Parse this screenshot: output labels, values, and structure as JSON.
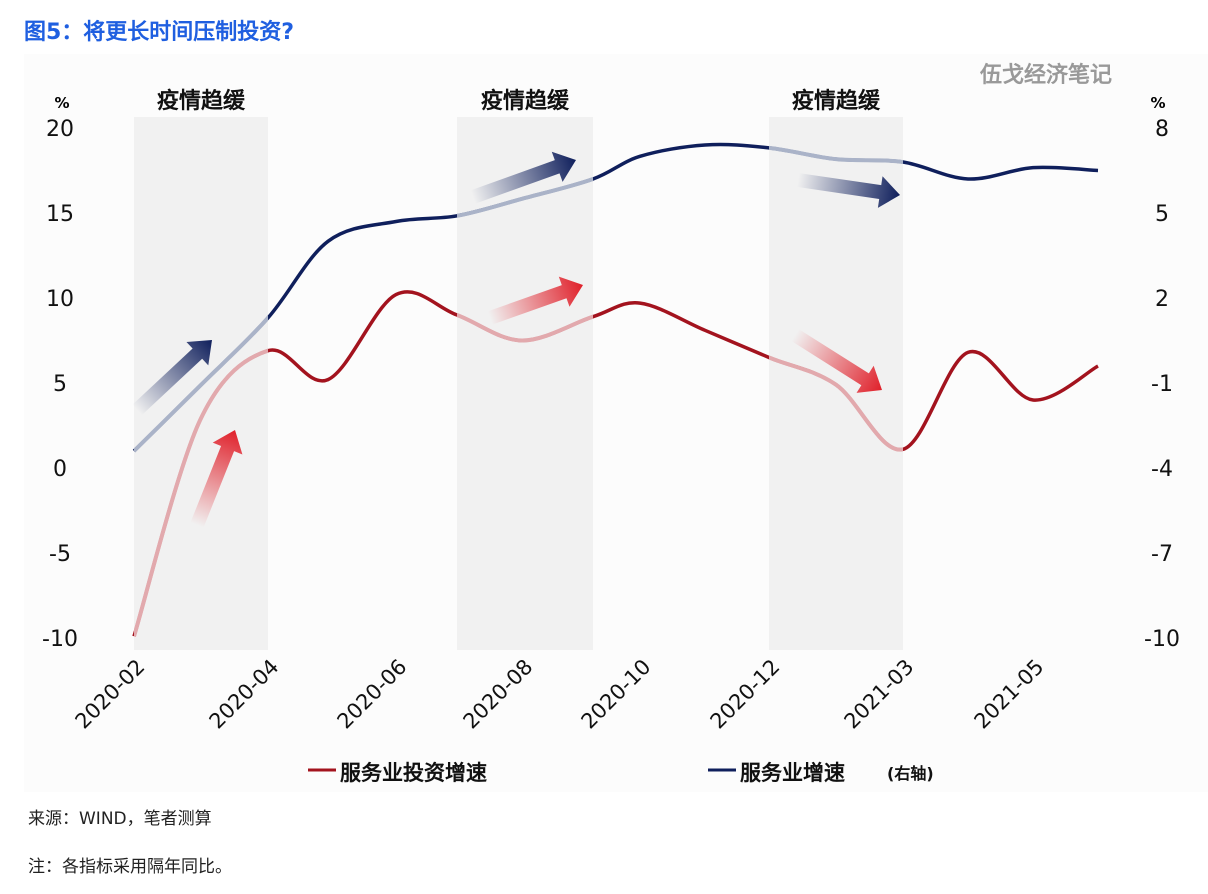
{
  "title": "图5：将更长时间压制投资?",
  "watermark": "伍戈经济笔记",
  "source": "来源：WIND，笔者测算",
  "note": "注：各指标采用隔年同比。",
  "chart_data": {
    "type": "line",
    "x": [
      "2020-02",
      "2020-03",
      "2020-04",
      "2020-05",
      "2020-06",
      "2020-07",
      "2020-08",
      "2020-09",
      "2020-10",
      "2020-11",
      "2020-12",
      "2021-02",
      "2021-03",
      "2021-04",
      "2021-05",
      "2021-06"
    ],
    "x_tick_labels": [
      "2020-02",
      "2020-04",
      "2020-06",
      "2020-08",
      "2020-10",
      "2020-12",
      "2021-03",
      "2021-05"
    ],
    "series": [
      {
        "name": "服务业投资增速",
        "axis": "left",
        "color": "#a3131e",
        "light_color": "#e2a9ad",
        "values": [
          -9.9,
          2.8,
          6.9,
          5.2,
          10.2,
          9.0,
          7.5,
          8.9,
          9.7,
          8.1,
          6.5,
          4.9,
          1.1,
          6.8,
          4.0,
          6.0
        ]
      },
      {
        "name": "服务业增速",
        "legend_suffix": "(右轴)",
        "axis": "right",
        "color": "#0f1f5c",
        "light_color": "#aab3c8",
        "values": [
          -3.4,
          -1.1,
          1.3,
          4.0,
          4.7,
          4.9,
          5.5,
          6.2,
          7.0,
          7.4,
          7.3,
          6.9,
          6.8,
          6.2,
          6.6,
          6.5
        ]
      }
    ],
    "left_axis": {
      "unit": "%",
      "ylim": [
        -10,
        20
      ],
      "ticks": [
        20,
        15,
        10,
        5,
        0,
        -5,
        -10
      ]
    },
    "right_axis": {
      "unit": "%",
      "ylim": [
        -10,
        8
      ],
      "ticks": [
        8,
        5,
        2,
        -1,
        -4,
        -7,
        -10
      ]
    },
    "shaded_periods": [
      {
        "label": "疫情趋缓",
        "from": "2020-02",
        "to": "2020-04"
      },
      {
        "label": "疫情趋缓",
        "from": "2020-07",
        "to": "2020-09"
      },
      {
        "label": "疫情趋缓",
        "from": "2020-12",
        "to": "2021-03"
      }
    ],
    "legend_position": "bottom",
    "grid": false
  }
}
